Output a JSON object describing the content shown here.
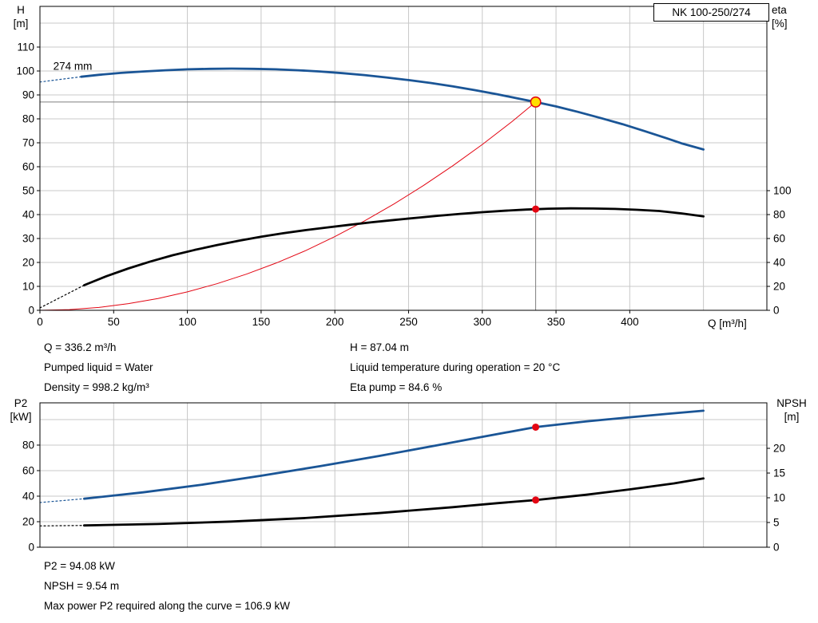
{
  "header": {
    "model": "NK 100-250/274"
  },
  "info_top": {
    "left": [
      "Q = 336.2 m³/h",
      "Pumped liquid = Water",
      "Density = 998.2 kg/m³"
    ],
    "right": [
      "H = 87.04 m",
      "Liquid temperature during operation = 20 °C",
      "Eta pump = 84.6 %"
    ]
  },
  "info_bottom": [
    "P2 = 94.08 kW",
    "NPSH = 9.54 m",
    "Max power P2 required along the curve = 106.9 kW"
  ],
  "chart_data": [
    {
      "type": "line",
      "x_label": "Q [m³/h]",
      "grid_color": "#c8c8c8",
      "x_axis": {
        "range": [
          0,
          493
        ],
        "tick_labels": [
          0,
          50,
          100,
          150,
          200,
          250,
          300,
          350,
          400
        ],
        "grid": [
          50,
          100,
          150,
          200,
          250,
          300,
          350,
          400,
          450
        ]
      },
      "left_axis": {
        "label": "H",
        "unit": "[m]",
        "range": [
          0,
          127
        ],
        "ticks": [
          0,
          10,
          20,
          30,
          40,
          50,
          60,
          70,
          80,
          90,
          100,
          110
        ],
        "grid": [
          10,
          20,
          30,
          40,
          50,
          60,
          70,
          80,
          90,
          100,
          110,
          120
        ]
      },
      "right_axis": {
        "label": "eta",
        "unit": "[%]",
        "range": [
          0,
          254
        ],
        "ticks": [
          0,
          20,
          40,
          60,
          80,
          100
        ]
      },
      "series": [
        {
          "name": "hq-curve-dashed-head",
          "axis": "left",
          "color": "#1a5596",
          "width": 1.2,
          "dash": "2,3",
          "points": [
            [
              0,
              95.4
            ],
            [
              28,
              97.6
            ]
          ]
        },
        {
          "name": "system-curve",
          "axis": "left",
          "color": "#e30613",
          "width": 1,
          "points": [
            [
              0,
              0
            ],
            [
              20,
              0.3
            ],
            [
              40,
              1.2
            ],
            [
              60,
              2.8
            ],
            [
              80,
              4.9
            ],
            [
              100,
              7.7
            ],
            [
              120,
              11.1
            ],
            [
              140,
              15.1
            ],
            [
              160,
              19.7
            ],
            [
              180,
              24.9
            ],
            [
              200,
              30.8
            ],
            [
              220,
              37.3
            ],
            [
              240,
              44.4
            ],
            [
              260,
              52.1
            ],
            [
              280,
              60.4
            ],
            [
              300,
              69.3
            ],
            [
              320,
              78.8
            ],
            [
              336.2,
              87.04
            ]
          ]
        },
        {
          "name": "eta-curve-dashed-head",
          "axis": "right",
          "color": "#000000",
          "width": 1.2,
          "dash": "2,3",
          "points": [
            [
              0,
              2
            ],
            [
              30,
              21
            ]
          ]
        },
        {
          "name": "eta-curve",
          "axis": "right",
          "color": "#000000",
          "width": 2.8,
          "points": [
            [
              30,
              21
            ],
            [
              45,
              28.5
            ],
            [
              60,
              35
            ],
            [
              75,
              40.8
            ],
            [
              90,
              46
            ],
            [
              105,
              50.5
            ],
            [
              120,
              54.5
            ],
            [
              135,
              58.2
            ],
            [
              150,
              61.5
            ],
            [
              165,
              64.4
            ],
            [
              180,
              67
            ],
            [
              195,
              69.3
            ],
            [
              210,
              71.5
            ],
            [
              225,
              73.6
            ],
            [
              240,
              75.5
            ],
            [
              255,
              77.3
            ],
            [
              270,
              79
            ],
            [
              285,
              80.6
            ],
            [
              300,
              82
            ],
            [
              315,
              83.2
            ],
            [
              330,
              84.2
            ],
            [
              345,
              84.9
            ],
            [
              360,
              85.2
            ],
            [
              375,
              85.1
            ],
            [
              390,
              84.7
            ],
            [
              405,
              84
            ],
            [
              420,
              83
            ],
            [
              435,
              81
            ],
            [
              450,
              78.5
            ]
          ]
        },
        {
          "name": "hq-curve",
          "axis": "left",
          "color": "#1a5596",
          "width": 2.8,
          "points": [
            [
              28,
              97.6
            ],
            [
              40,
              98.4
            ],
            [
              55,
              99.2
            ],
            [
              70,
              99.8
            ],
            [
              85,
              100.3
            ],
            [
              100,
              100.7
            ],
            [
              115,
              100.9
            ],
            [
              130,
              101
            ],
            [
              145,
              100.9
            ],
            [
              160,
              100.7
            ],
            [
              175,
              100.3
            ],
            [
              190,
              99.8
            ],
            [
              205,
              99.1
            ],
            [
              220,
              98.3
            ],
            [
              235,
              97.3
            ],
            [
              250,
              96.2
            ],
            [
              265,
              95
            ],
            [
              280,
              93.6
            ],
            [
              295,
              92
            ],
            [
              310,
              90.3
            ],
            [
              325,
              88.4
            ],
            [
              336.2,
              87.04
            ],
            [
              350,
              85.2
            ],
            [
              365,
              82.9
            ],
            [
              380,
              80.4
            ],
            [
              395,
              77.8
            ],
            [
              410,
              74.9
            ],
            [
              425,
              71.9
            ],
            [
              435,
              69.8
            ],
            [
              450,
              67.2
            ]
          ]
        }
      ],
      "guides": {
        "x": 336.2,
        "h": 87.04,
        "color": "#7f7f7f"
      },
      "markers": [
        {
          "name": "duty-point",
          "x": 336.2,
          "value": 87.04,
          "axis": "left",
          "fill": "#ffdf00",
          "stroke": "#e30613",
          "r": 6.2
        },
        {
          "name": "eta-duty-point",
          "x": 336.2,
          "value": 84.6,
          "axis": "right",
          "fill": "#e30613",
          "r": 4.5
        }
      ],
      "annotations": [
        {
          "name": "impeller-size-label",
          "text": "274 mm",
          "x": 9,
          "value": 100.5,
          "axis": "left"
        }
      ]
    },
    {
      "type": "line",
      "x_label": "",
      "grid_color": "#c8c8c8",
      "x_axis": {
        "range": [
          0,
          493
        ],
        "tick_labels": [],
        "grid": [
          50,
          100,
          150,
          200,
          250,
          300,
          350,
          400,
          450
        ]
      },
      "left_axis": {
        "label": "P2",
        "unit": "[kW]",
        "range": [
          0,
          113.1
        ],
        "ticks": [
          0,
          20,
          40,
          60,
          80
        ],
        "grid": [
          20,
          40,
          60,
          80,
          100
        ]
      },
      "right_axis": {
        "label": "NPSH",
        "unit": "[m]",
        "range": [
          0,
          29.2
        ],
        "ticks": [
          0,
          5,
          10,
          15,
          20
        ]
      },
      "series": [
        {
          "name": "p2-curve-dashed-head",
          "axis": "left",
          "color": "#1a5596",
          "width": 1.2,
          "dash": "2,3",
          "points": [
            [
              0,
              35
            ],
            [
              30,
              38
            ]
          ]
        },
        {
          "name": "p2-curve",
          "axis": "left",
          "color": "#1a5596",
          "width": 2.8,
          "points": [
            [
              30,
              38
            ],
            [
              70,
              43
            ],
            [
              110,
              49
            ],
            [
              150,
              56
            ],
            [
              190,
              63.5
            ],
            [
              230,
              71.5
            ],
            [
              270,
              80
            ],
            [
              300,
              86.5
            ],
            [
              336.2,
              94.08
            ],
            [
              370,
              98.5
            ],
            [
              400,
              101.8
            ],
            [
              425,
              104.4
            ],
            [
              450,
              106.9
            ]
          ]
        },
        {
          "name": "npsh-curve-dashed-head",
          "axis": "right",
          "color": "#000000",
          "width": 1.2,
          "dash": "2,3",
          "points": [
            [
              0,
              4.3
            ],
            [
              30,
              4.4
            ]
          ]
        },
        {
          "name": "npsh-curve",
          "axis": "right",
          "color": "#000000",
          "width": 2.8,
          "points": [
            [
              30,
              4.4
            ],
            [
              80,
              4.7
            ],
            [
              130,
              5.2
            ],
            [
              180,
              5.9
            ],
            [
              230,
              6.9
            ],
            [
              280,
              8.1
            ],
            [
              310,
              8.9
            ],
            [
              336.2,
              9.54
            ],
            [
              370,
              10.6
            ],
            [
              400,
              11.7
            ],
            [
              430,
              12.9
            ],
            [
              450,
              13.9
            ]
          ]
        }
      ],
      "markers": [
        {
          "name": "p2-duty-point",
          "x": 336.2,
          "value": 94.08,
          "axis": "left",
          "fill": "#e30613",
          "r": 4.5
        },
        {
          "name": "npsh-duty-point",
          "x": 336.2,
          "value": 9.54,
          "axis": "right",
          "fill": "#e30613",
          "r": 4.5
        }
      ],
      "annotations": []
    }
  ]
}
